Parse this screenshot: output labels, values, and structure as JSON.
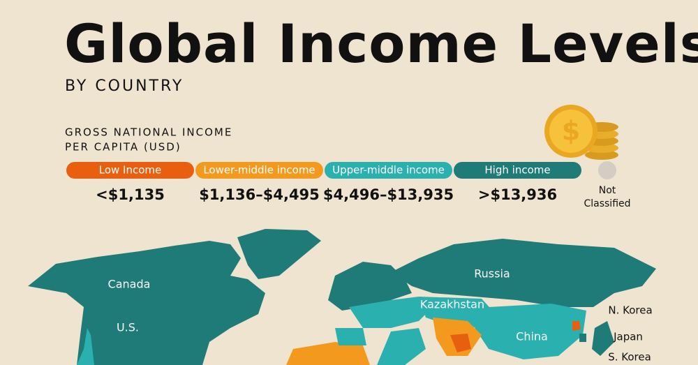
{
  "header": {
    "title": "Global Income Levels",
    "subtitle": "BY COUNTRY"
  },
  "legend": {
    "heading": [
      "GROSS NATIONAL INCOME",
      "PER CAPITA (USD)"
    ],
    "items": [
      {
        "label": "Low Income",
        "range": "<$1,135",
        "color": "#e8600f"
      },
      {
        "label": "Lower-middle income",
        "range": "$1,136–$4,495",
        "color": "#f39a1e"
      },
      {
        "label": "Upper-middle income",
        "range": "$4,496–$13,935",
        "color": "#2bb0b0"
      },
      {
        "label": "High income",
        "range": ">$13,936",
        "color": "#1f7b78"
      }
    ],
    "not_classified": [
      "Not",
      "Classified"
    ]
  },
  "map": {
    "labels": [
      "Canada",
      "U.S.",
      "Russia",
      "Kazakhstan",
      "China",
      "N. Korea",
      "Japan",
      "S. Korea"
    ]
  }
}
